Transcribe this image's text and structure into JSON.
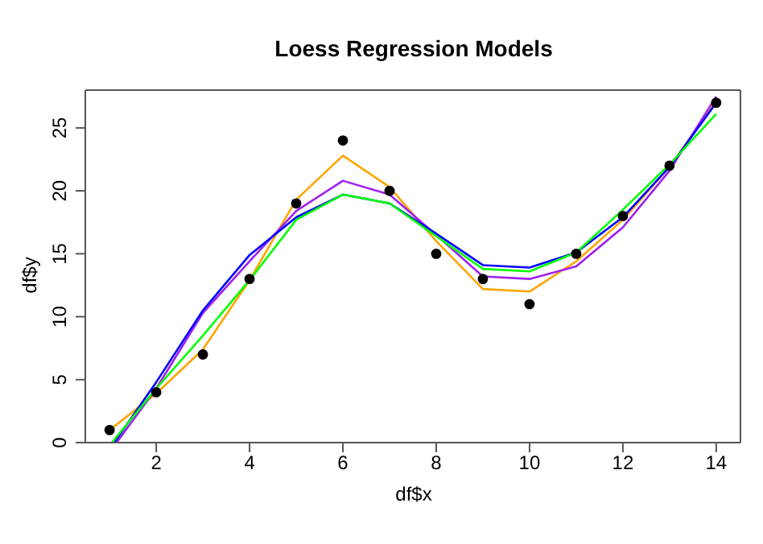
{
  "chart_data": {
    "type": "line",
    "title": "Loess Regression Models",
    "xlabel": "df$x",
    "ylabel": "df$y",
    "xlim": [
      0.48,
      14.52
    ],
    "ylim": [
      0,
      28
    ],
    "xticks": [
      2,
      4,
      6,
      8,
      10,
      12,
      14
    ],
    "yticks": [
      0,
      5,
      10,
      15,
      20,
      25
    ],
    "grid": false,
    "series": [
      {
        "type": "scatter",
        "marker": "circle",
        "color": "#000000",
        "x": [
          1,
          2,
          3,
          4,
          5,
          6,
          7,
          8,
          9,
          10,
          11,
          12,
          13,
          14
        ],
        "values": [
          1,
          4,
          7,
          13,
          19,
          24,
          20,
          15,
          13,
          11,
          15,
          18,
          22,
          27
        ]
      },
      {
        "color": "#ffa500",
        "x": [
          1,
          2,
          3,
          4,
          5,
          6,
          7,
          8,
          9,
          10,
          11,
          12,
          13,
          14
        ],
        "values": [
          1,
          3.9,
          7.4,
          12.9,
          19.3,
          22.8,
          20.3,
          16,
          12.2,
          12,
          14.4,
          17.7,
          21.9,
          27.1
        ]
      },
      {
        "color": "#a020f0",
        "x": [
          1.15,
          2,
          3,
          4,
          5,
          6,
          7,
          8,
          9,
          10,
          11,
          12,
          13,
          14
        ],
        "values": [
          0,
          4.3,
          10.3,
          14.4,
          18.4,
          20.8,
          19.7,
          16.5,
          13.2,
          13,
          14,
          17.1,
          21.6,
          27.5
        ]
      },
      {
        "color": "#0000ff",
        "x": [
          1.1,
          2,
          3,
          4,
          5,
          6,
          7,
          8,
          9,
          10,
          11,
          12,
          13,
          14
        ],
        "values": [
          0,
          4.8,
          10.5,
          14.9,
          17.9,
          19.7,
          19,
          16.6,
          14.1,
          13.9,
          15.1,
          17.9,
          21.9,
          27
        ]
      },
      {
        "color": "#00ff00",
        "x": [
          1.05,
          2,
          3,
          4,
          5,
          6,
          7,
          8,
          9,
          10,
          11,
          12,
          13,
          14
        ],
        "values": [
          0,
          4.3,
          8.5,
          12.9,
          17.7,
          19.7,
          19,
          16.4,
          13.8,
          13.6,
          15.1,
          18.5,
          22.1,
          26.1
        ]
      }
    ]
  }
}
